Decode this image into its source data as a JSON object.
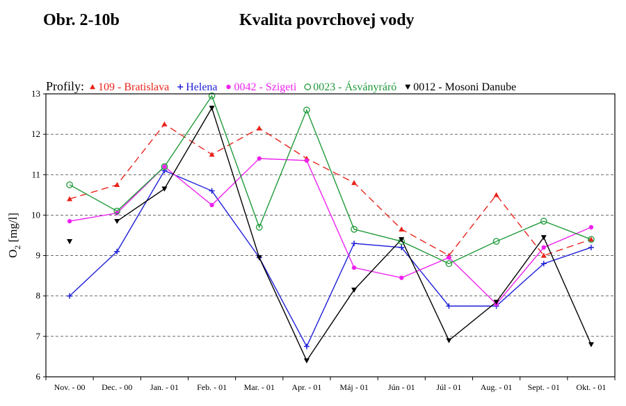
{
  "figure_number": "Obr. 2-10b",
  "figure_title": "Kvalita povrchovej vody",
  "chart_data": {
    "type": "line",
    "title": "Kvalita povrchovej vody",
    "legend_prefix": "Profily:",
    "ylabel_main": "O",
    "ylabel_sub": "2",
    "ylabel_unit": "[mg/l]",
    "ylim": [
      6,
      13
    ],
    "yticks": [
      "6",
      "7",
      "8",
      "9",
      "10",
      "11",
      "12",
      "13"
    ],
    "categories": [
      "Nov. - 00",
      "Dec. - 00",
      "Jan. - 01",
      "Feb. - 01",
      "Mar. - 01",
      "Apr. - 01",
      "Máj - 01",
      "Jún - 01",
      "Júl - 01",
      "Aug. - 01",
      "Sept. - 01",
      "Okt. - 01"
    ],
    "grid": "horizontal dashed",
    "legend_position": "top",
    "series": [
      {
        "name": "109 - Bratislava",
        "color": "#e8241c",
        "marker": "triangle-up",
        "dash": "10,6",
        "segments": [
          [
            0,
            11
          ]
        ],
        "values": [
          10.4,
          10.75,
          12.25,
          11.5,
          12.15,
          11.4,
          10.8,
          9.65,
          9.0,
          10.5,
          9.0,
          9.4
        ]
      },
      {
        "name": "Helena",
        "color": "#1f1fd8",
        "marker": "plus",
        "dash": "",
        "segments": [
          [
            0,
            11
          ]
        ],
        "values": [
          8.0,
          9.1,
          11.1,
          10.6,
          8.95,
          6.75,
          9.3,
          9.2,
          7.75,
          7.75,
          8.8,
          9.2
        ]
      },
      {
        "name": "0042 - Szigeti",
        "color": "#ee22ee",
        "marker": "dot",
        "dash": "",
        "segments": [
          [
            0,
            11
          ]
        ],
        "values": [
          9.85,
          10.05,
          11.2,
          10.25,
          11.4,
          11.35,
          8.7,
          8.45,
          8.95,
          7.8,
          9.2,
          9.7
        ]
      },
      {
        "name": "0023 - Ásványráró",
        "color": "#1f9a3a",
        "marker": "circle-open",
        "dash": "",
        "segments": [
          [
            0,
            11
          ]
        ],
        "values": [
          10.75,
          10.1,
          11.2,
          12.95,
          9.7,
          12.6,
          9.65,
          9.35,
          8.8,
          9.35,
          9.85,
          9.4
        ]
      },
      {
        "name": "0012 - Mosoni Danube",
        "color": "#000000",
        "marker": "triangle-down",
        "dash": "",
        "segments": [
          [
            1,
            11
          ]
        ],
        "values": [
          9.35,
          9.85,
          10.65,
          12.65,
          8.95,
          6.4,
          8.15,
          9.4,
          6.9,
          7.85,
          9.45,
          6.8
        ]
      }
    ]
  }
}
